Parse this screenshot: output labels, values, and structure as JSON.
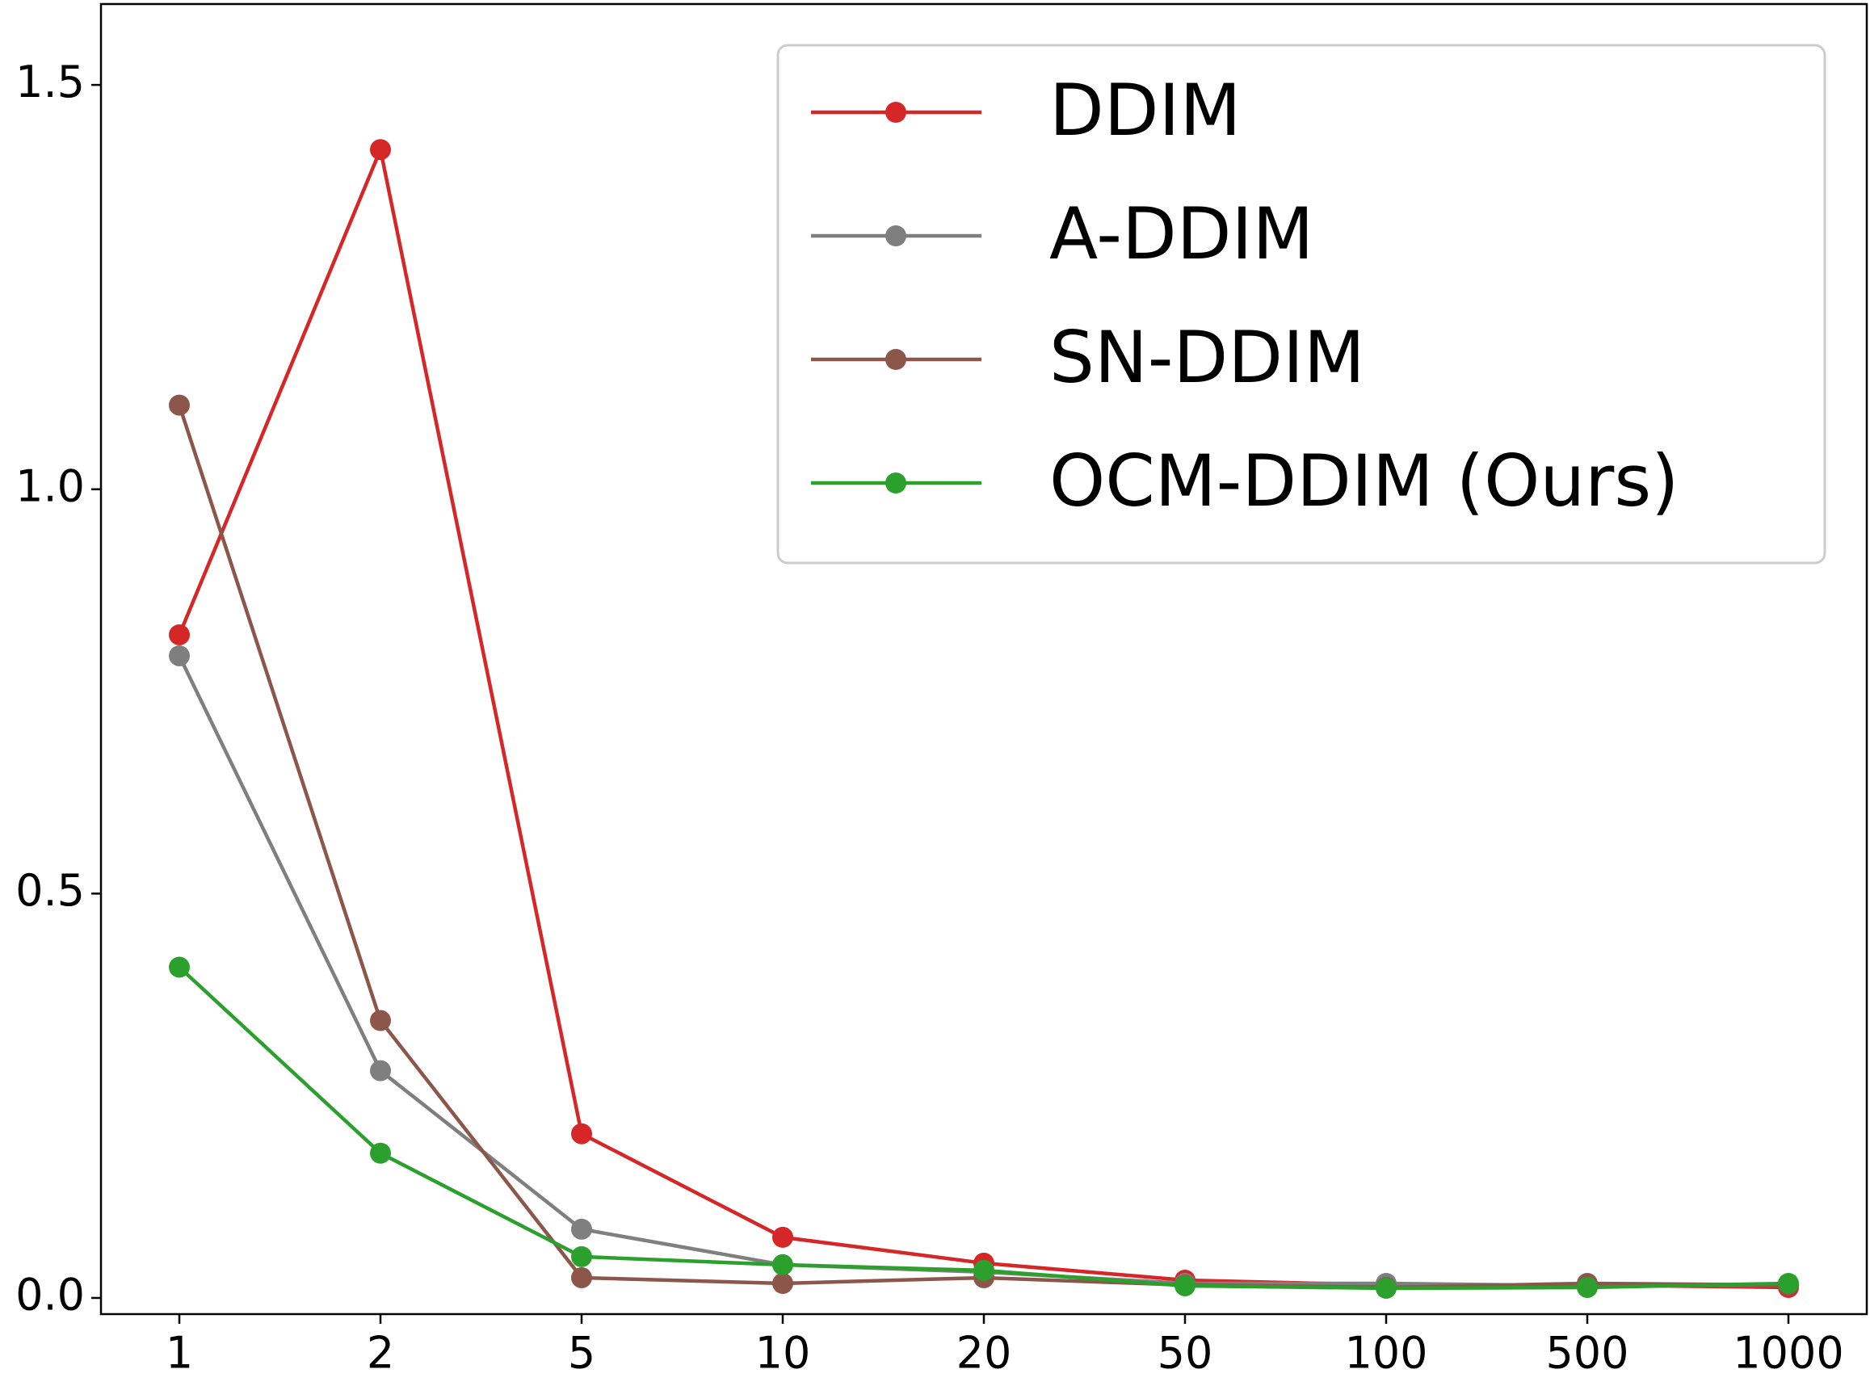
{
  "chart_data": {
    "type": "line",
    "categories": [
      "1",
      "2",
      "5",
      "10",
      "20",
      "50",
      "100",
      "500",
      "1000"
    ],
    "series": [
      {
        "name": "DDIM",
        "color": "#d62728",
        "values": [
          0.82,
          1.42,
          0.203,
          0.075,
          0.043,
          0.022,
          0.016,
          0.016,
          0.013
        ]
      },
      {
        "name": "A-DDIM",
        "color": "#7f7f7f",
        "values": [
          0.794,
          0.281,
          0.085,
          0.041,
          0.032,
          0.018,
          0.018,
          0.015,
          0.016
        ]
      },
      {
        "name": "SN-DDIM",
        "color": "#8c564b",
        "values": [
          1.104,
          0.343,
          0.025,
          0.018,
          0.025,
          0.016,
          0.013,
          0.018,
          0.016
        ]
      },
      {
        "name": "OCM-DDIM (Ours)",
        "color": "#2ca02c",
        "values": [
          0.409,
          0.179,
          0.051,
          0.041,
          0.034,
          0.015,
          0.012,
          0.013,
          0.018
        ]
      }
    ],
    "ylim": [
      -0.02,
      1.6
    ],
    "yticks": [
      {
        "value": 0,
        "label": "0.0"
      },
      0.5,
      {
        "value": 1,
        "label": "1.0"
      },
      1.5
    ],
    "legend": "upper right",
    "grid": false
  }
}
